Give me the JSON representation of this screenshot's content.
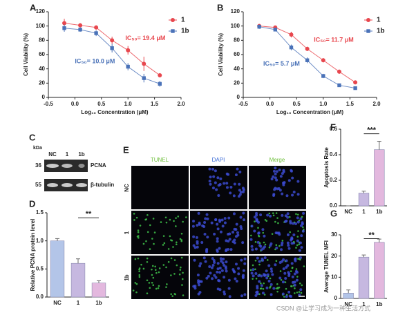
{
  "chart_data": [
    {
      "type": "line",
      "panel": "A",
      "ylabel": "Cell Viability (%)",
      "xlabel": "Log₁₀ Concentration (μM)",
      "xlim": [
        -0.5,
        2.0
      ],
      "xticks": [
        {
          "value": -0.5,
          "label": "-0.5"
        },
        {
          "value": 0,
          "label": "0.0"
        },
        {
          "value": 0.5,
          "label": "0.5"
        },
        {
          "value": 1,
          "label": "1.0"
        },
        {
          "value": 1.5,
          "label": "1.5"
        },
        {
          "value": 2,
          "label": "2.0"
        }
      ],
      "ylim": [
        0,
        120
      ],
      "yticks": [
        0,
        20,
        40,
        60,
        80,
        100,
        120
      ],
      "legend": "upper right",
      "x": [
        -0.2,
        0.1,
        0.4,
        0.7,
        1.0,
        1.3,
        1.6
      ],
      "series": [
        {
          "name": "1",
          "color": "#e8474e",
          "marker": "circle",
          "values": [
            104,
            101,
            98,
            80,
            66,
            47,
            31
          ],
          "errors": [
            6,
            3,
            3,
            5,
            6,
            10,
            3
          ],
          "ic50_label": "IC₅₀= 19.4 μM"
        },
        {
          "name": "1b",
          "color": "#4a72b8",
          "marker": "square",
          "values": [
            97,
            95,
            90,
            69,
            43,
            27,
            19
          ],
          "errors": [
            5,
            3,
            4,
            6,
            5,
            6,
            4
          ],
          "ic50_label": "IC₅₀= 10.0 μM"
        }
      ]
    },
    {
      "type": "line",
      "panel": "B",
      "ylabel": "Cell Viability (%)",
      "xlabel": "Log₁₀ Concentration (μM)",
      "xlim": [
        -0.5,
        2.0
      ],
      "xticks": [
        {
          "value": -0.5,
          "label": "-0.5"
        },
        {
          "value": 0,
          "label": "0.0"
        },
        {
          "value": 0.5,
          "label": "0.5"
        },
        {
          "value": 1,
          "label": "1.0"
        },
        {
          "value": 1.5,
          "label": "1.5"
        },
        {
          "value": 2,
          "label": "2.0"
        }
      ],
      "ylim": [
        0,
        120
      ],
      "yticks": [
        0,
        20,
        40,
        60,
        80,
        100,
        120
      ],
      "legend": "upper right",
      "x": [
        -0.2,
        0.1,
        0.4,
        0.7,
        1.0,
        1.3,
        1.6
      ],
      "series": [
        {
          "name": "1",
          "color": "#e8474e",
          "marker": "circle",
          "values": [
            100,
            98,
            88,
            68,
            52,
            36,
            21
          ],
          "errors": [
            3,
            2,
            4,
            3,
            3,
            3,
            2
          ],
          "ic50_label": "IC₅₀= 11.7 μM"
        },
        {
          "name": "1b",
          "color": "#4a72b8",
          "marker": "square",
          "values": [
            99,
            95,
            70,
            52,
            30,
            17,
            13
          ],
          "errors": [
            3,
            2,
            4,
            4,
            3,
            2,
            2
          ],
          "ic50_label": "IC₅₀= 5.7 μM"
        }
      ]
    },
    {
      "type": "bar",
      "panel": "D",
      "ylabel": "Relative PCNA protein level",
      "categories": [
        "NC",
        "1",
        "1b"
      ],
      "values": [
        1.0,
        0.6,
        0.25
      ],
      "errors": [
        0.04,
        0.08,
        0.04
      ],
      "colors": [
        "#b3c5e8",
        "#c6b8e0",
        "#e3b8de"
      ],
      "ylim": [
        0,
        1.5
      ],
      "yticks": [
        {
          "value": 0,
          "label": "0.0"
        },
        {
          "value": 0.5,
          "label": "0.5"
        },
        {
          "value": 1,
          "label": "1.0"
        },
        {
          "value": 1.5,
          "label": "1.5"
        }
      ],
      "significance": "**"
    },
    {
      "type": "bar",
      "panel": "F",
      "ylabel": "Apoptosis Rate",
      "categories": [
        "NC",
        "1",
        "1b"
      ],
      "values": [
        0.0,
        0.1,
        0.44
      ],
      "errors": [
        0.0,
        0.015,
        0.065
      ],
      "colors": [
        "#b3c5e8",
        "#c6b8e0",
        "#e3b8de"
      ],
      "ylim": [
        0,
        0.6
      ],
      "yticks": [
        {
          "value": 0,
          "label": "0.0"
        },
        {
          "value": 0.2,
          "label": "0.2"
        },
        {
          "value": 0.4,
          "label": "0.4"
        },
        {
          "value": 0.6,
          "label": "0.6"
        }
      ],
      "significance": "***"
    },
    {
      "type": "bar",
      "panel": "G",
      "ylabel": "Average TUNEL MFI",
      "categories": [
        "NC",
        "1",
        "1b"
      ],
      "values": [
        2.5,
        19.5,
        26.5
      ],
      "errors": [
        1.5,
        1.0,
        1.5
      ],
      "colors": [
        "#b3c5e8",
        "#c6b8e0",
        "#e3b8de"
      ],
      "ylim": [
        0,
        30
      ],
      "yticks": [
        0,
        10,
        20,
        30
      ],
      "significance": "**"
    }
  ],
  "blot": {
    "panel": "C",
    "unit": "kDa",
    "lanes": [
      "NC",
      "1",
      "1b"
    ],
    "rows": [
      {
        "size": "36",
        "protein": "PCNA"
      },
      {
        "size": "55",
        "protein": "β-tubulin"
      }
    ]
  },
  "microscopy": {
    "panel": "E",
    "columns": [
      "TUNEL",
      "DAPI",
      "Merge"
    ],
    "rows": [
      "NC",
      "1",
      "1b"
    ]
  },
  "watermark": "CSDN @让学习成为一种生活方式"
}
